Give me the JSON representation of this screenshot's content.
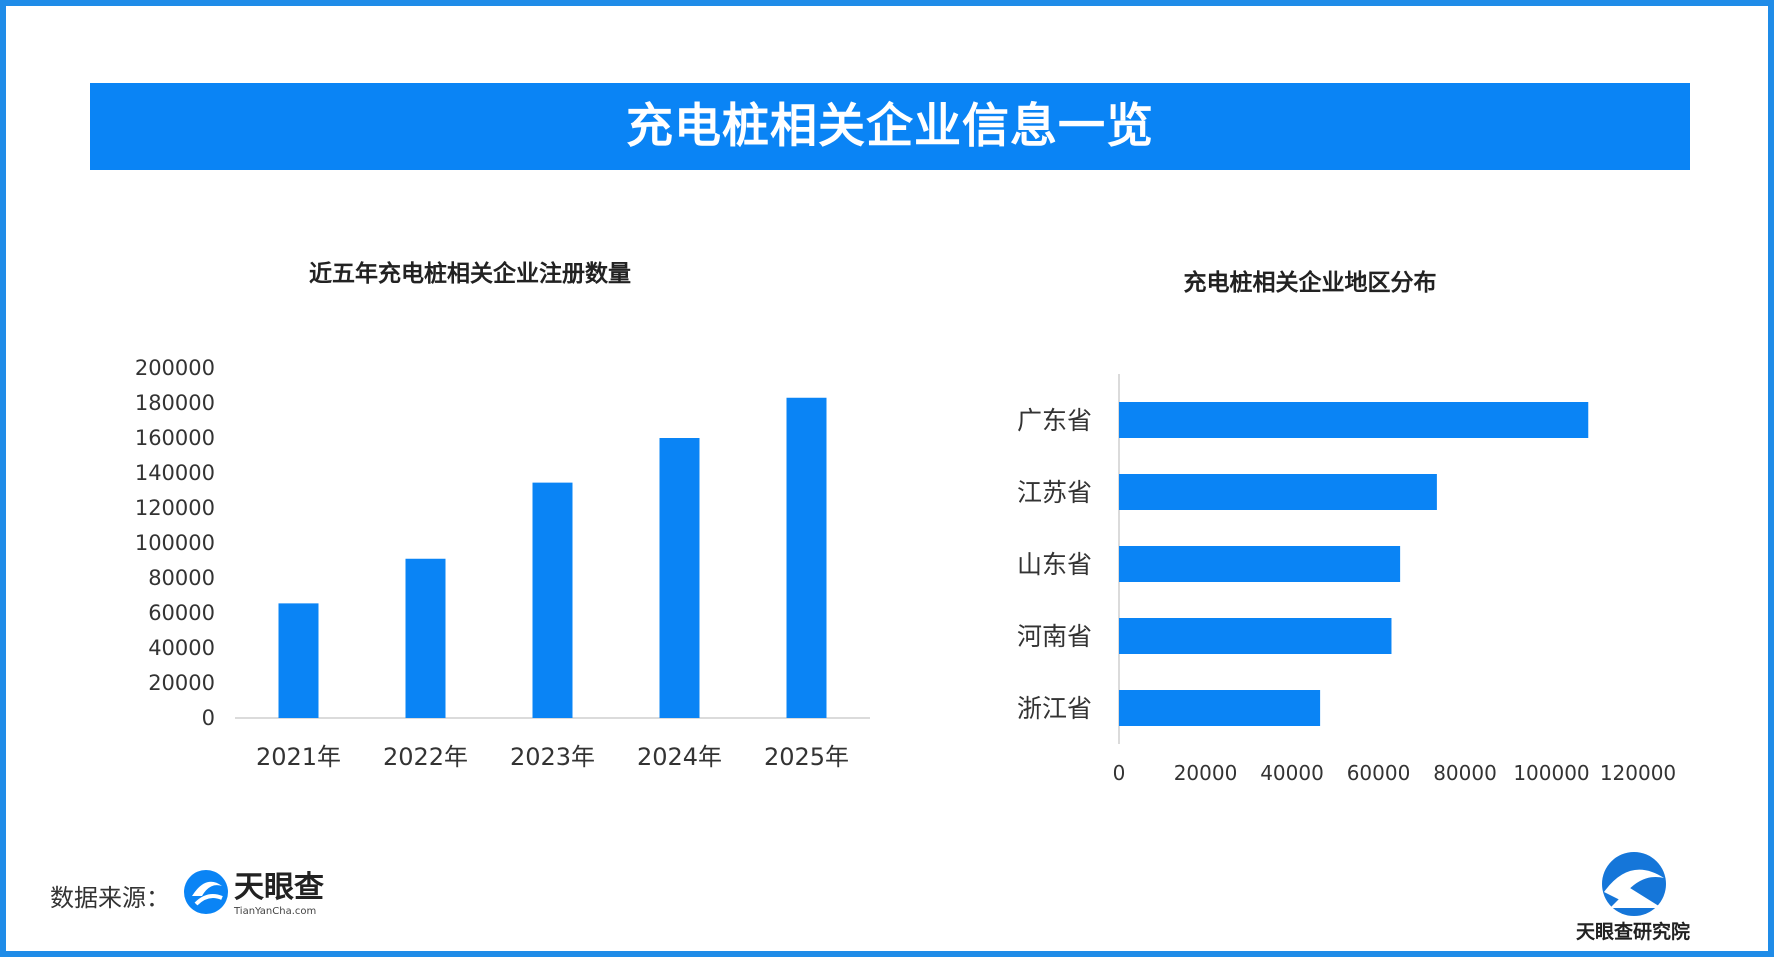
{
  "header": {
    "title": "充电桩相关企业信息一览"
  },
  "chart_data": [
    {
      "type": "bar",
      "title": "近五年充电桩相关企业注册数量",
      "categories": [
        "2021年",
        "2022年",
        "2023年",
        "2024年",
        "2025年"
      ],
      "values": [
        65500,
        91000,
        134500,
        160000,
        183000
      ],
      "ylim": [
        0,
        200000
      ],
      "yticks": [
        0,
        20000,
        40000,
        60000,
        80000,
        100000,
        120000,
        140000,
        160000,
        180000,
        200000
      ],
      "color": "#0a84f5",
      "grid": false
    },
    {
      "type": "bar",
      "orientation": "horizontal",
      "title": "充电桩相关企业地区分布",
      "categories": [
        "广东省",
        "江苏省",
        "山东省",
        "河南省",
        "浙江省"
      ],
      "values": [
        108500,
        73500,
        65000,
        63000,
        46500
      ],
      "xlim": [
        0,
        120000
      ],
      "xticks": [
        0,
        20000,
        40000,
        60000,
        80000,
        100000,
        120000
      ],
      "color": "#0a84f5",
      "grid": false
    }
  ],
  "footer": {
    "source_label": "数据来源：",
    "logo_name": "天眼查",
    "logo_url_text": "TianYanCha.com",
    "institute_name": "天眼查研究院"
  }
}
